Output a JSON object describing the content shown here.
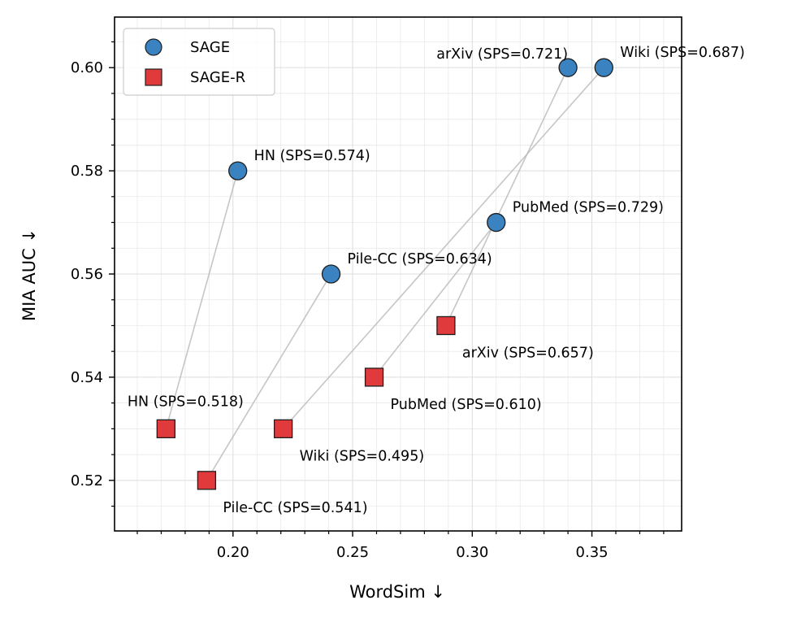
{
  "chart_data": {
    "type": "scatter",
    "xlabel": "WordSim ↓",
    "ylabel": "MIA AUC ↓",
    "xlim": [
      0.1505,
      0.3875
    ],
    "ylim": [
      0.5102,
      0.6098
    ],
    "xticks": [
      "0.20",
      "0.25",
      "0.30",
      "0.35"
    ],
    "yticks": [
      "0.52",
      "0.54",
      "0.56",
      "0.58",
      "0.60"
    ],
    "grid": true,
    "legend_position": "top-left",
    "series": [
      {
        "name": "SAGE",
        "marker": "circle",
        "color": "#3a82c0",
        "points": [
          {
            "x": 0.34,
            "y": 0.6,
            "label": "arXiv (SPS=0.721)"
          },
          {
            "x": 0.355,
            "y": 0.6,
            "label": "Wiki (SPS=0.687)"
          },
          {
            "x": 0.202,
            "y": 0.58,
            "label": "HN (SPS=0.574)"
          },
          {
            "x": 0.31,
            "y": 0.57,
            "label": "PubMed (SPS=0.729)"
          },
          {
            "x": 0.241,
            "y": 0.56,
            "label": "Pile-CC (SPS=0.634)"
          }
        ]
      },
      {
        "name": "SAGE-R",
        "marker": "square",
        "color": "#e03a3c",
        "points": [
          {
            "x": 0.289,
            "y": 0.55,
            "label": "arXiv (SPS=0.657)"
          },
          {
            "x": 0.259,
            "y": 0.54,
            "label": "PubMed (SPS=0.610)"
          },
          {
            "x": 0.172,
            "y": 0.53,
            "label": "HN (SPS=0.518)"
          },
          {
            "x": 0.221,
            "y": 0.53,
            "label": "Wiki (SPS=0.495)"
          },
          {
            "x": 0.189,
            "y": 0.52,
            "label": "Pile-CC (SPS=0.541)"
          }
        ]
      }
    ]
  }
}
